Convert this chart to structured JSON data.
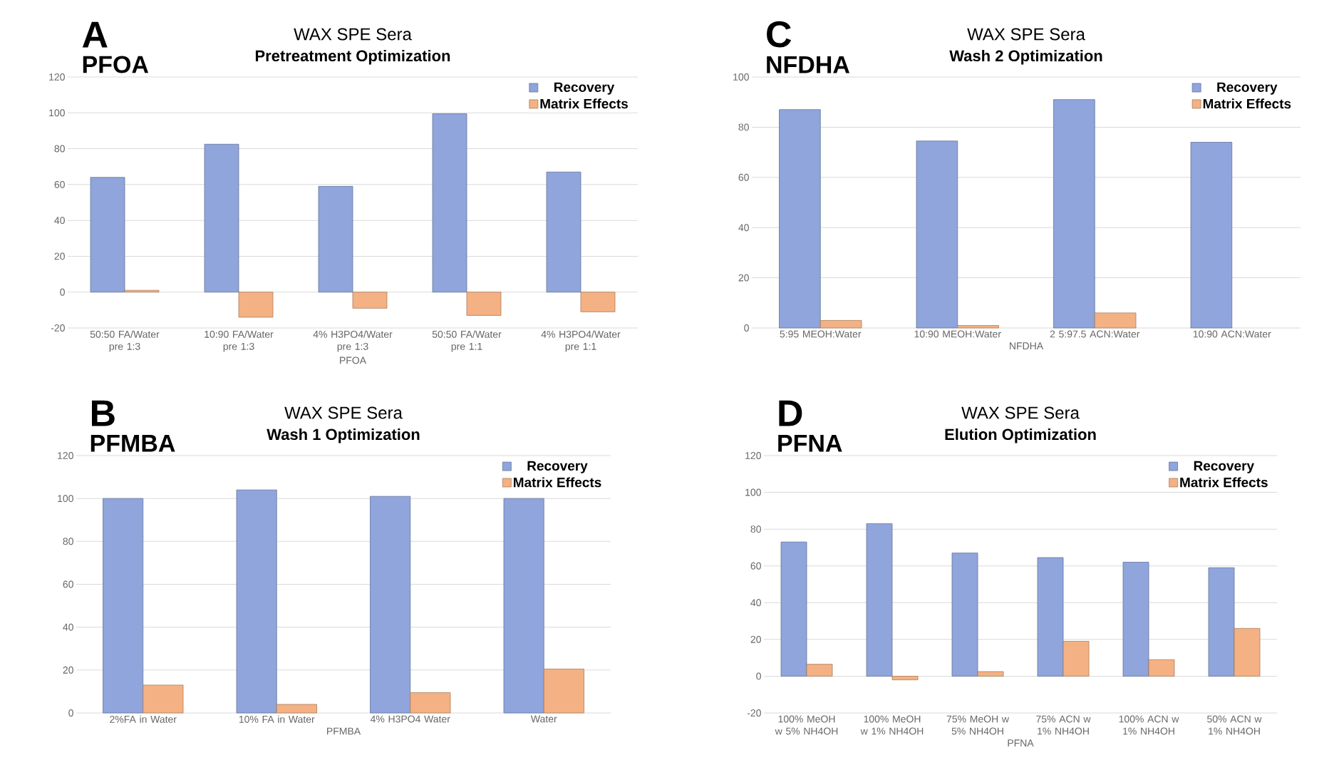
{
  "chart_data": [
    {
      "type": "bar",
      "title": "WAX SPE Sera",
      "subtitle": "Pretreatment Optimization",
      "xlabel": "PFOA",
      "annotations": [
        "A",
        "PFOA"
      ],
      "categories": [
        "50:50 FA/Water pre 1:3",
        "10:90 FA/Water pre 1:3",
        "4% H3PO4/Water pre 1:3",
        "50:50 FA/Water pre 1:1",
        "4% H3PO4/Water pre 1:1"
      ],
      "series": [
        {
          "name": "Recovery",
          "color": "#8fa5dc",
          "values": [
            64,
            82.5,
            59,
            99.5,
            67
          ]
        },
        {
          "name": "Matrix Effects",
          "color": "#f4b183",
          "values": [
            1,
            -14,
            -9,
            -13,
            -11
          ]
        }
      ],
      "ylim": [
        -20,
        120
      ],
      "yticks": [
        -20,
        0,
        20,
        40,
        60,
        80,
        100,
        120
      ],
      "grid": "y",
      "legend": "top right"
    },
    {
      "type": "bar",
      "title": "WAX SPE Sera",
      "subtitle": "Wash 2 Optimization",
      "xlabel": "NFDHA",
      "annotations": [
        "C",
        "NFDHA"
      ],
      "categories": [
        "5:95 MEOH:Water",
        "10:90 MEOH:Water",
        "2 5:97.5 ACN:Water",
        "10:90 ACN:Water"
      ],
      "series": [
        {
          "name": "Recovery",
          "color": "#8fa5dc",
          "values": [
            87,
            74.5,
            91,
            74
          ]
        },
        {
          "name": "Matrix Effects",
          "color": "#f4b183",
          "values": [
            3,
            1,
            6,
            null
          ]
        }
      ],
      "ylim": [
        0,
        100
      ],
      "yticks": [
        0,
        20,
        40,
        60,
        80,
        100
      ],
      "grid": "y",
      "legend": "top right"
    },
    {
      "type": "bar",
      "title": "WAX SPE Sera",
      "subtitle": "Wash 1 Optimization",
      "xlabel": "PFMBA",
      "annotations": [
        "B",
        "PFMBA"
      ],
      "categories": [
        "2%FA  in Water",
        "10% FA in Water",
        "4% H3PO4 Water",
        "Water"
      ],
      "series": [
        {
          "name": "Recovery",
          "color": "#8fa5dc",
          "values": [
            100,
            104,
            101,
            100
          ]
        },
        {
          "name": "Matrix Effects",
          "color": "#f4b183",
          "values": [
            13,
            4,
            9.5,
            20.5
          ]
        }
      ],
      "ylim": [
        0,
        120
      ],
      "yticks": [
        0,
        20,
        40,
        60,
        80,
        100,
        120
      ],
      "grid": "y",
      "legend": "top right"
    },
    {
      "type": "bar",
      "title": "WAX SPE Sera",
      "subtitle": "Elution Optimization",
      "xlabel": "PFNA",
      "annotations": [
        "D",
        "PFNA"
      ],
      "categories": [
        "100% MeOH w 5% NH4OH",
        "100% MeOH w 1% NH4OH",
        "75% MeOH w 5% NH4OH",
        "75% ACN w 1% NH4OH",
        "100% ACN w 1% NH4OH",
        "50% ACN w 1% NH4OH"
      ],
      "series": [
        {
          "name": "Recovery",
          "color": "#8fa5dc",
          "values": [
            73,
            83,
            67,
            64.5,
            62,
            59
          ]
        },
        {
          "name": "Matrix Effects",
          "color": "#f4b183",
          "values": [
            6.5,
            -2,
            2.5,
            19,
            9,
            26
          ]
        }
      ],
      "ylim": [
        -20,
        120
      ],
      "yticks": [
        -20,
        0,
        20,
        40,
        60,
        80,
        100,
        120
      ],
      "grid": "y",
      "legend": "top right"
    }
  ]
}
